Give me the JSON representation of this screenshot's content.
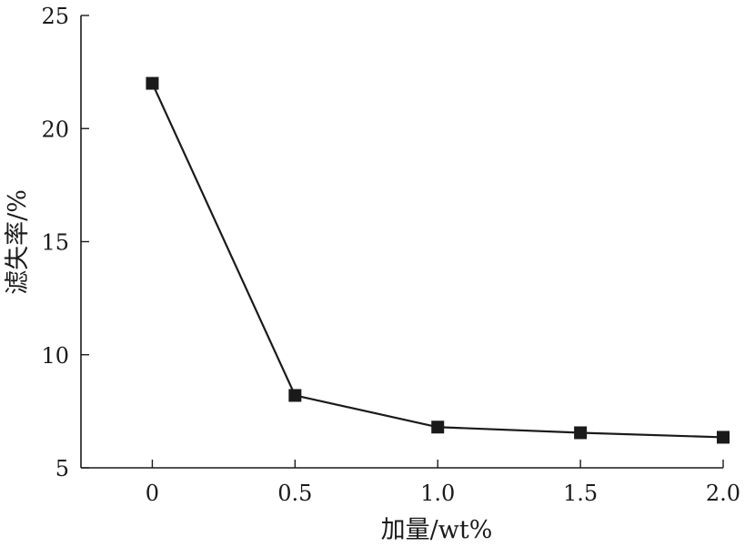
{
  "chart_data": {
    "type": "line",
    "x": [
      0,
      0.5,
      1.0,
      1.5,
      2.0
    ],
    "x_tick_labels": [
      "0",
      "0.5",
      "1.0",
      "1.5",
      "2.0"
    ],
    "y_ticks": [
      5,
      10,
      15,
      20,
      25
    ],
    "y_tick_labels": [
      "5",
      "10",
      "15",
      "20",
      "25"
    ],
    "series": [
      {
        "values": [
          22.0,
          8.2,
          6.8,
          6.55,
          6.35
        ],
        "marker": "square",
        "color": "#1a1a1a"
      }
    ],
    "xlabel": "加量/wt%",
    "ylabel": "滤失率/%",
    "xlim": [
      -0.25,
      2.0
    ],
    "ylim": [
      5,
      25
    ],
    "grid": false
  }
}
